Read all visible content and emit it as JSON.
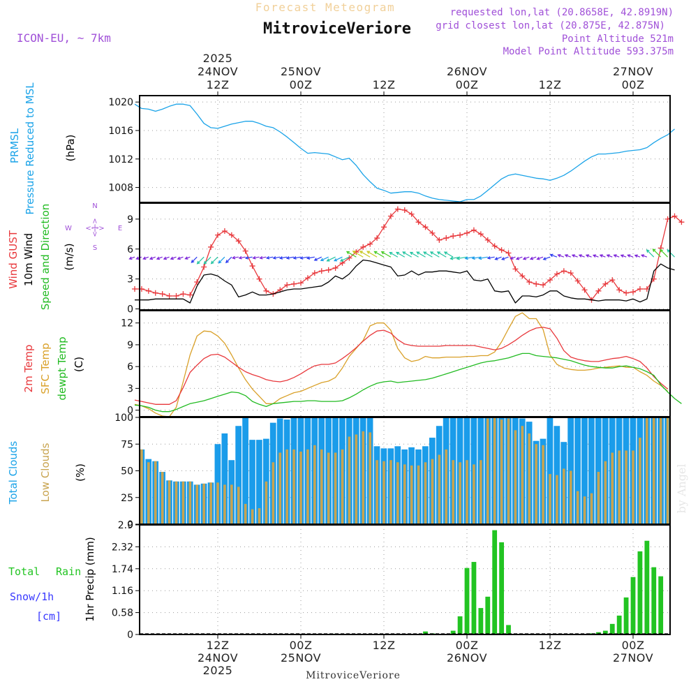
{
  "header": {
    "product": "Forecast Meteogram",
    "location": "MitroviceVeriore",
    "model": "ICON-EU, ~ 7km",
    "requested": "requested lon,lat (20.8658E, 42.8919N)",
    "closest": "grid closest lon,lat (20.875E, 42.875N)",
    "altitude": "Point Altitude 521m",
    "model_altitude": "Model Point Altitude 593.375m"
  },
  "time_axis": {
    "top_labels": [
      {
        "lines": [
          "2025",
          "24NOV",
          "12Z"
        ],
        "hour": 12
      },
      {
        "lines": [
          "25NOV",
          "00Z"
        ],
        "hour": 24
      },
      {
        "lines": [
          "12Z"
        ],
        "hour": 36
      },
      {
        "lines": [
          "26NOV",
          "00Z"
        ],
        "hour": 48
      },
      {
        "lines": [
          "12Z"
        ],
        "hour": 60
      },
      {
        "lines": [
          "27NOV",
          "00Z"
        ],
        "hour": 72
      }
    ],
    "bottom_labels": [
      {
        "lines": [
          "12Z",
          "24NOV",
          "2025"
        ],
        "hour": 12
      },
      {
        "lines": [
          "00Z",
          "25NOV"
        ],
        "hour": 24
      },
      {
        "lines": [
          "12Z"
        ],
        "hour": 36
      },
      {
        "lines": [
          "00Z",
          "26NOV"
        ],
        "hour": 48
      },
      {
        "lines": [
          "12Z"
        ],
        "hour": 60
      },
      {
        "lines": [
          "00Z",
          "27NOV"
        ],
        "hour": 72
      }
    ],
    "footer": "MitroviceVeriore",
    "watermark": "by Angel"
  },
  "labels": {
    "p1": [
      "PRMSL",
      "Pressure Reduced to MSL",
      "(hPa)"
    ],
    "p2": [
      "Wind GUST",
      "10m Wind",
      "Speed and Direction",
      "(m/s)"
    ],
    "compass": {
      "n": "N",
      "s": "S",
      "w": "W",
      "e": "E",
      "arrow": "<-|->"
    },
    "p3": [
      "2m Temp",
      "SFC Temp",
      "dewpt Temp",
      "(C)"
    ],
    "p4": [
      "Total Clouds",
      "Low Clouds",
      "(%)"
    ],
    "p5": [
      "Total",
      "Rain",
      "Snow/1h",
      "[cm]",
      "1hr Precip (mm)"
    ]
  },
  "colors": {
    "pressure": "#1aa3e8",
    "gust": "#e8383c",
    "wind": "#000000",
    "temp2m": "#e8383c",
    "sfc": "#d9a028",
    "dewpt": "#22bb22",
    "total_clouds": "#1a9cea",
    "low_clouds": "#c8a450",
    "rain": "#22c422",
    "snow": "#3838ff",
    "header_purple": "#a050d8"
  },
  "chart_data": [
    {
      "type": "line",
      "title": "PRMSL Pressure Reduced to MSL",
      "ylabel": "(hPa)",
      "ylim": [
        1005.9,
        1020.9
      ],
      "yticks": [
        "1008",
        "1012",
        "1016",
        "1020"
      ],
      "x_start_hour": 0,
      "x_step_hours": 1,
      "x_end_hour": 78,
      "series": [
        {
          "name": "PRMSL",
          "values": [
            1019.7,
            1019.1,
            1019.0,
            1018.7,
            1019.0,
            1019.4,
            1019.7,
            1019.7,
            1019.5,
            1018.3,
            1017.0,
            1016.4,
            1016.3,
            1016.6,
            1016.9,
            1017.1,
            1017.3,
            1017.3,
            1017.0,
            1016.6,
            1016.4,
            1015.8,
            1015.1,
            1014.3,
            1013.5,
            1012.8,
            1012.9,
            1012.8,
            1012.7,
            1012.3,
            1011.9,
            1012.1,
            1011.1,
            1009.8,
            1008.8,
            1007.9,
            1007.6,
            1007.2,
            1007.3,
            1007.4,
            1007.4,
            1007.2,
            1006.8,
            1006.5,
            1006.3,
            1006.2,
            1006.1,
            1006.0,
            1006.3,
            1006.3,
            1006.8,
            1007.6,
            1008.4,
            1009.2,
            1009.7,
            1009.9,
            1009.7,
            1009.5,
            1009.3,
            1009.2,
            1009.0,
            1009.3,
            1009.7,
            1010.3,
            1011.0,
            1011.7,
            1012.3,
            1012.7,
            1012.7,
            1012.8,
            1012.9,
            1013.1,
            1013.2,
            1013.3,
            1013.6,
            1014.3,
            1014.9,
            1015.4,
            1016.2
          ]
        }
      ]
    },
    {
      "type": "line",
      "title": "Wind GUST, 10m Wind Speed and Direction",
      "ylabel": "(m/s)",
      "ylim": [
        -0.1,
        10.6
      ],
      "yticks": [
        "0",
        "3",
        "6",
        "9"
      ],
      "x_start_hour": 0,
      "x_step_hours": 1,
      "x_end_hour": 78,
      "series": [
        {
          "name": "Wind GUST",
          "values": [
            2.0,
            2.0,
            1.8,
            1.6,
            1.5,
            1.3,
            1.3,
            1.5,
            1.4,
            2.7,
            4.2,
            6.2,
            7.4,
            7.8,
            7.4,
            6.8,
            5.8,
            4.3,
            3.0,
            1.8,
            1.5,
            1.9,
            2.4,
            2.5,
            2.6,
            3.1,
            3.6,
            3.8,
            3.9,
            4.1,
            4.6,
            5.1,
            5.7,
            6.2,
            6.5,
            7.1,
            8.2,
            9.3,
            10.0,
            9.9,
            9.5,
            8.7,
            8.2,
            7.6,
            6.9,
            7.1,
            7.3,
            7.4,
            7.6,
            7.9,
            7.5,
            6.9,
            6.3,
            5.9,
            5.6,
            4.0,
            3.3,
            2.7,
            2.5,
            2.4,
            2.9,
            3.5,
            3.8,
            3.6,
            2.8,
            1.9,
            0.9,
            1.8,
            2.5,
            2.9,
            1.9,
            1.6,
            1.7,
            2.0,
            2.0,
            3.0,
            6.1,
            9.0,
            9.3,
            8.7
          ]
        },
        {
          "name": "10m Wind",
          "values": [
            0.9,
            0.9,
            0.9,
            1.0,
            1.0,
            1.0,
            1.0,
            1.0,
            0.6,
            2.3,
            3.4,
            3.5,
            3.3,
            2.8,
            2.4,
            1.2,
            1.4,
            1.7,
            1.4,
            1.4,
            1.5,
            1.7,
            1.9,
            2.0,
            2.0,
            2.1,
            2.2,
            2.3,
            2.7,
            3.3,
            3.0,
            3.5,
            4.3,
            4.9,
            4.8,
            4.6,
            4.4,
            4.2,
            3.3,
            3.4,
            3.8,
            3.4,
            3.7,
            3.7,
            3.8,
            3.8,
            3.7,
            3.6,
            3.8,
            2.9,
            2.8,
            3.0,
            1.8,
            1.7,
            1.8,
            0.6,
            1.3,
            1.3,
            1.2,
            1.4,
            1.8,
            1.8,
            1.3,
            1.1,
            1.0,
            1.0,
            0.9,
            0.8,
            0.9,
            0.9,
            0.9,
            0.8,
            1.0,
            0.7,
            1.0,
            3.8,
            4.5,
            4.1,
            3.9
          ]
        }
      ],
      "direction_arrows": {
        "y_value": 5.2,
        "note": "colored wind direction arrows per hour"
      }
    },
    {
      "type": "line",
      "title": "2m Temp, SFC Temp, dewpt Temp",
      "ylabel": "(C)",
      "ylim": [
        -0.9,
        13.7
      ],
      "yticks": [
        "0",
        "3",
        "6",
        "9",
        "12"
      ],
      "x_start_hour": 0,
      "x_step_hours": 1,
      "x_end_hour": 78,
      "series": [
        {
          "name": "2m Temp",
          "values": [
            1.4,
            1.2,
            1.0,
            0.8,
            0.8,
            0.8,
            1.3,
            3.1,
            5.2,
            6.2,
            7.1,
            7.6,
            7.7,
            7.3,
            6.6,
            5.9,
            5.3,
            4.9,
            4.6,
            4.2,
            4.0,
            3.9,
            4.1,
            4.5,
            5.0,
            5.6,
            6.1,
            6.3,
            6.3,
            6.5,
            7.1,
            7.8,
            8.6,
            9.5,
            10.3,
            10.9,
            11.0,
            10.6,
            9.7,
            9.1,
            8.9,
            8.8,
            8.8,
            8.8,
            8.8,
            8.9,
            8.9,
            8.9,
            8.9,
            8.9,
            8.7,
            8.5,
            8.3,
            8.5,
            9.0,
            9.6,
            10.3,
            10.9,
            11.3,
            11.4,
            11.2,
            9.9,
            8.2,
            7.3,
            7.0,
            6.8,
            6.7,
            6.7,
            6.9,
            7.1,
            7.2,
            7.4,
            7.1,
            6.7,
            5.8,
            4.6,
            3.7,
            2.9
          ]
        },
        {
          "name": "SFC Temp",
          "values": [
            0.8,
            0.6,
            0.2,
            -0.4,
            -0.8,
            -0.9,
            0.4,
            3.9,
            7.6,
            10.2,
            10.9,
            10.8,
            10.2,
            9.2,
            7.6,
            5.8,
            4.2,
            2.9,
            1.9,
            0.9,
            0.9,
            1.6,
            2.0,
            2.4,
            2.6,
            3.0,
            3.4,
            3.8,
            4.0,
            4.5,
            5.8,
            7.4,
            8.5,
            9.6,
            11.6,
            12.0,
            12.0,
            11.0,
            8.5,
            7.2,
            6.7,
            6.9,
            7.4,
            7.2,
            7.2,
            7.3,
            7.3,
            7.3,
            7.4,
            7.4,
            7.5,
            7.5,
            8.0,
            9.4,
            11.2,
            12.9,
            13.4,
            12.6,
            12.6,
            11.1,
            7.6,
            6.3,
            5.8,
            5.6,
            5.5,
            5.5,
            5.6,
            5.8,
            5.9,
            6.0,
            6.1,
            5.9,
            5.9,
            5.3,
            4.8,
            4.0,
            3.4,
            2.6
          ]
        },
        {
          "name": "dewpt Temp",
          "values": [
            0.7,
            0.6,
            0.4,
            0.0,
            -0.2,
            -0.2,
            0.1,
            0.5,
            0.9,
            1.1,
            1.3,
            1.6,
            1.9,
            2.2,
            2.5,
            2.4,
            2.0,
            1.2,
            0.8,
            0.5,
            0.9,
            1.0,
            1.1,
            1.2,
            1.2,
            1.3,
            1.3,
            1.2,
            1.2,
            1.2,
            1.3,
            1.7,
            2.2,
            2.8,
            3.3,
            3.7,
            3.9,
            4.0,
            3.8,
            3.9,
            4.0,
            4.1,
            4.2,
            4.4,
            4.7,
            5.0,
            5.3,
            5.6,
            5.9,
            6.2,
            6.5,
            6.7,
            6.8,
            7.0,
            7.2,
            7.5,
            7.8,
            7.8,
            7.5,
            7.4,
            7.3,
            7.2,
            7.0,
            6.8,
            6.5,
            6.2,
            6.0,
            5.9,
            5.8,
            5.8,
            6.0,
            6.1,
            5.9,
            5.7,
            5.3,
            4.8,
            3.5,
            2.5,
            1.6,
            0.9
          ]
        }
      ]
    },
    {
      "type": "bar",
      "title": "Total Clouds, Low Clouds",
      "ylabel": "(%)",
      "ylim": [
        0,
        100
      ],
      "yticks": [
        "0",
        "25",
        "50",
        "75",
        "100"
      ],
      "x_start_hour": 0,
      "x_step_hours": 1,
      "series": [
        {
          "name": "Total Clouds",
          "values": [
            70,
            70,
            61,
            59,
            49,
            41,
            40,
            40,
            40,
            37,
            38,
            39,
            75,
            85,
            60,
            92,
            100,
            79,
            79,
            80,
            95,
            99,
            98,
            100,
            100,
            100,
            100,
            100,
            100,
            100,
            100,
            100,
            100,
            100,
            100,
            73,
            71,
            71,
            73,
            70,
            72,
            70,
            73,
            81,
            92,
            100,
            100,
            100,
            100,
            100,
            100,
            100,
            100,
            100,
            100,
            100,
            99,
            96,
            78,
            80,
            100,
            92,
            77,
            100,
            100,
            100,
            100,
            100,
            100,
            100,
            100,
            100,
            100,
            100,
            100,
            100,
            100,
            100,
            100
          ]
        },
        {
          "name": "Low Clouds",
          "values": [
            70,
            70,
            58,
            59,
            49,
            41,
            40,
            40,
            40,
            37,
            38,
            39,
            39,
            37,
            37,
            35,
            19,
            14,
            15,
            40,
            58,
            67,
            70,
            70,
            68,
            70,
            74,
            70,
            67,
            67,
            70,
            82,
            84,
            87,
            86,
            60,
            59,
            60,
            58,
            56,
            55,
            55,
            58,
            61,
            65,
            70,
            60,
            58,
            60,
            56,
            60,
            99,
            100,
            98,
            99,
            88,
            92,
            85,
            75,
            74,
            47,
            46,
            52,
            50,
            31,
            26,
            29,
            49,
            59,
            67,
            69,
            69,
            69,
            81,
            100,
            100,
            100,
            100,
            100
          ]
        }
      ]
    },
    {
      "type": "bar",
      "title": "1hr Precip (mm)",
      "ylabel": "1hr Precip (mm)",
      "ylim": [
        0,
        2.9
      ],
      "yticks": [
        "0",
        "0.58",
        "1.16",
        "1.74",
        "2.32",
        "2.9"
      ],
      "x_start_hour": 0,
      "x_step_hours": 1,
      "series": [
        {
          "name": "Total Rain",
          "values": [
            0,
            0,
            0,
            0,
            0,
            0,
            0,
            0,
            0,
            0,
            0,
            0,
            0,
            0,
            0,
            0,
            0,
            0,
            0,
            0,
            0,
            0,
            0,
            0,
            0,
            0,
            0,
            0,
            0,
            0.02,
            0,
            0,
            0,
            0,
            0,
            0,
            0,
            0,
            0,
            0,
            0,
            0,
            0.08,
            0.03,
            0,
            0,
            0.1,
            0.48,
            1.76,
            1.92,
            0.7,
            1,
            2.76,
            2.44,
            0.25,
            0,
            0,
            0,
            0,
            0,
            0,
            0,
            0,
            0,
            0,
            0,
            0.03,
            0.06,
            0.1,
            0.28,
            0.5,
            0.98,
            1.52,
            2.2,
            2.48,
            1.78,
            1.54
          ]
        },
        {
          "name": "Snow/1h",
          "values": []
        }
      ]
    }
  ]
}
